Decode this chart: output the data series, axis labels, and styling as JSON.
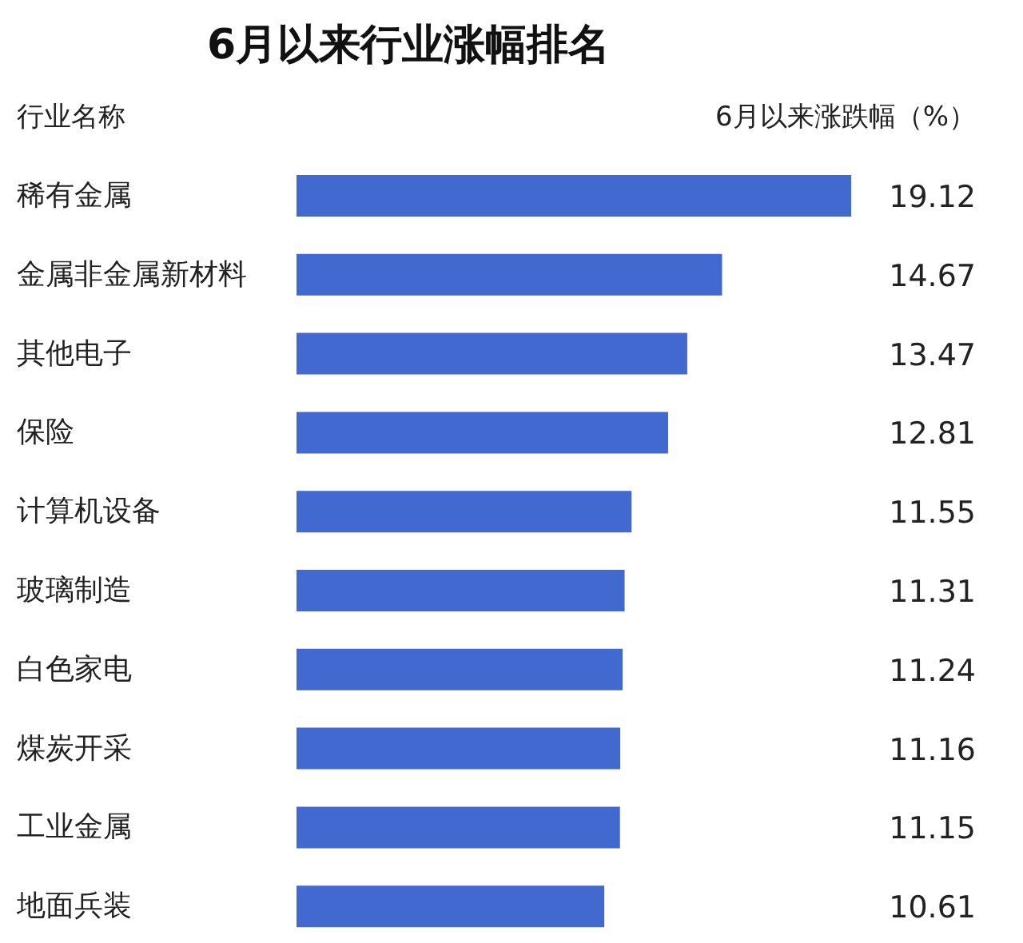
{
  "chart_data": {
    "type": "bar",
    "orientation": "horizontal",
    "title": "6月以来行业涨幅排名",
    "ylabel": "行业名称",
    "xlabel": "6月以来涨跌幅（%）",
    "categories": [
      "稀有金属",
      "金属非金属新材料",
      "其他电子",
      "保险",
      "计算机设备",
      "玻璃制造",
      "白色家电",
      "煤炭开采",
      "工业金属",
      "地面兵装"
    ],
    "values": [
      19.12,
      14.67,
      13.47,
      12.81,
      11.55,
      11.31,
      11.24,
      11.16,
      11.15,
      10.61
    ],
    "color": "#4169d0",
    "data_labels": true
  }
}
